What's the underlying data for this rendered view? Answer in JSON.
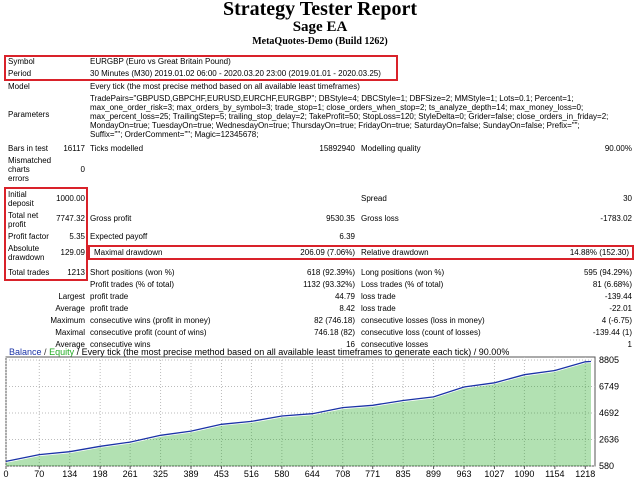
{
  "title": "Strategy Tester Report",
  "ea_name": "Sage EA",
  "server": "MetaQuotes-Demo (Build 1262)",
  "settings": {
    "symbol_label": "Symbol",
    "symbol_value": "EURGBP (Euro vs Great Britain Pound)",
    "period_label": "Period",
    "period_value": "30 Minutes (M30) 2019.01.02 06:00 - 2020.03.20 23:00 (2019.01.01 - 2020.03.25)",
    "model_label": "Model",
    "model_value": "Every tick (the most precise method based on all available least timeframes)",
    "parameters_label": "Parameters",
    "parameters_lines": [
      "TradePairs=\"GBPUSD,GBPCHF,EURUSD,EURCHF,EURGBP\"; DBStyle=4; DBCStyle=1; DBFSize=2; MMStyle=1; Lots=0.1; Percent=1;",
      "max_one_order_risk=3; max_orders_by_symbol=3; trade_stop=1; close_orders_when_stop=2; ts_analyze_depth=14; max_money_loss=0;",
      "max_percent_loss=25; TrailingStep=5; trailing_stop_delay=2; TakeProfit=50; StopLoss=120; StyleDelta=0; Grider=false; close_orders_in_friday=2;",
      "MondayOn=true; TuesdayOn=true; WednesdayOn=true; ThursdayOn=true; FridayOn=true; SaturdayOn=false; SundayOn=false; Prefix=\"\";",
      "Suffix=\"\"; OrderComment=\"\"; Magic=12345678;"
    ]
  },
  "stats": {
    "bars_label": "Bars in test",
    "bars_value": "16117",
    "ticks_label": "Ticks modelled",
    "ticks_value": "15892940",
    "quality_label": "Modelling quality",
    "quality_value": "90.00%",
    "mismatched_label": [
      "Mismatched",
      "charts",
      "errors"
    ],
    "mismatched_value": "0",
    "initial_label": [
      "Initial",
      "deposit"
    ],
    "initial_value": "1000.00",
    "spread_label": "Spread",
    "spread_value": "30",
    "totalnet_label": [
      "Total net",
      "profit"
    ],
    "totalnet_value": "7747.32",
    "grossprofit_label": "Gross profit",
    "grossprofit_value": "9530.35",
    "grossloss_label": "Gross loss",
    "grossloss_value": "-1783.02",
    "pf_label": "Profit factor",
    "pf_value": "5.35",
    "ep_label": "Expected payoff",
    "ep_value": "6.39",
    "absdd_label": [
      "Absolute",
      "drawdown"
    ],
    "absdd_value": "129.09",
    "maxdd_label": "Maximal drawdown",
    "maxdd_value": "206.09 (7.06%)",
    "reldd_label": "Relative drawdown",
    "reldd_value": "14.88% (152.30)",
    "tt_label": "Total trades",
    "tt_value": "1213",
    "short_label": "Short positions (won %)",
    "short_value": "618 (92.39%)",
    "long_label": "Long positions (won %)",
    "long_value": "595 (94.29%)",
    "pt_label": "Profit trades (% of total)",
    "pt_value": "1132 (93.32%)",
    "lt_label": "Loss trades (% of total)",
    "lt_value": "81 (6.68%)",
    "largest_label": "Largest",
    "lpt_label": "profit trade",
    "lpt_value": "44.79",
    "llt_label": "loss trade",
    "llt_value": "-139.44",
    "average_label": "Average",
    "apt_label": "profit trade",
    "apt_value": "8.42",
    "alt_label": "loss trade",
    "alt_value": "-22.01",
    "maximum_label": "Maximum",
    "mcw_label": "consecutive wins (profit in money)",
    "mcw_value": "82 (746.18)",
    "mcl_label": "consecutive losses (loss in money)",
    "mcl_value": "4 (-6.75)",
    "maximal_label": "Maximal",
    "mcp_label": "consecutive profit (count of wins)",
    "mcp_value": "746.18 (82)",
    "mclc_label": "consecutive loss (count of losses)",
    "mclc_value": "-139.44 (1)",
    "average2_label": "Average",
    "acw_label": "consecutive wins",
    "acw_value": "16",
    "acl_label": "consecutive losses",
    "acl_value": "1"
  },
  "colors": {
    "highlight": "#d9222a",
    "balance": "#1a33a6",
    "equity": "#22aa22"
  },
  "chart_data": {
    "type": "line",
    "legend": {
      "balance": "Balance",
      "sep": "/",
      "equity": "Equity",
      "rest": "/ Every tick (the most precise method based on all available least timeframes to generate each tick) / 90.00%"
    },
    "x_ticks": [
      "0",
      "70",
      "134",
      "198",
      "261",
      "325",
      "389",
      "453",
      "516",
      "580",
      "644",
      "708",
      "771",
      "835",
      "899",
      "963",
      "1027",
      "1090",
      "1154",
      "1218"
    ],
    "y_ticks": [
      "8805",
      "6749",
      "4692",
      "2636",
      "580"
    ],
    "ylim": [
      580,
      8805
    ],
    "xlim": [
      0,
      1230
    ],
    "series": [
      {
        "name": "Balance",
        "x": [
          0,
          70,
          134,
          198,
          261,
          325,
          389,
          453,
          516,
          580,
          644,
          708,
          771,
          835,
          899,
          963,
          1027,
          1090,
          1154,
          1218,
          1230
        ],
        "values": [
          1000,
          1400,
          1750,
          2050,
          2500,
          2900,
          3350,
          3750,
          4100,
          4400,
          4700,
          5050,
          5350,
          5600,
          6000,
          6650,
          7100,
          7600,
          8050,
          8600,
          8750
        ]
      }
    ]
  }
}
